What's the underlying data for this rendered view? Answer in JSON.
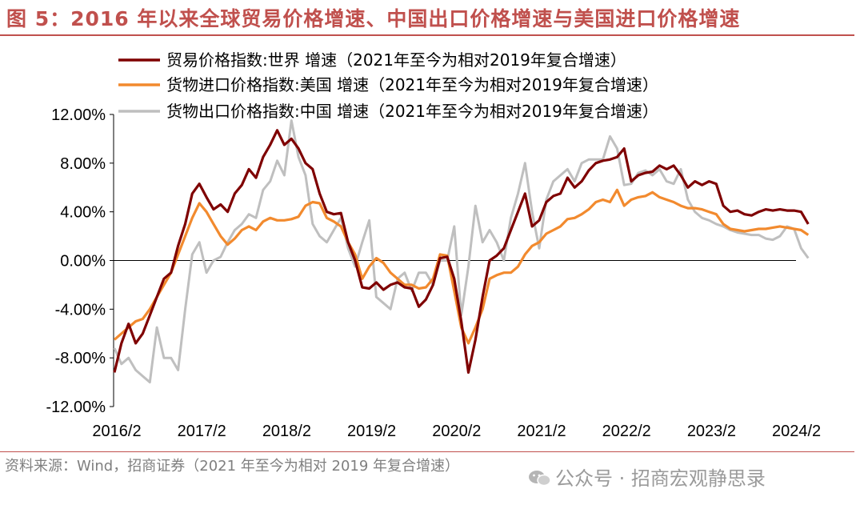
{
  "title": "图 5：2016 年以来全球贸易价格增速、中国出口价格增速与美国进口价格增速",
  "source": "资料来源：Wind，招商证券（2021 年至今为相对 2019 年复合增速）",
  "watermark": "公众号 · 招商宏观静思录",
  "colors": {
    "accent": "#c0504d",
    "world": "#7f0000",
    "us": "#f28a2e",
    "china": "#bfbfbf"
  },
  "chart_data": {
    "type": "line",
    "ylim": [
      -12,
      12
    ],
    "yticks": [
      "12.00%",
      "8.00%",
      "4.00%",
      "0.00%",
      "-4.00%",
      "-8.00%",
      "-12.00%"
    ],
    "ytick_values": [
      12,
      8,
      4,
      0,
      -4,
      -8,
      -12
    ],
    "xlabels": [
      "2016/2",
      "2017/2",
      "2018/2",
      "2019/2",
      "2020/2",
      "2021/2",
      "2022/2",
      "2023/2",
      "2024/2"
    ],
    "x_start": "2016/2",
    "x_end": "2024/5",
    "grid": false,
    "legend_position": "top",
    "series": [
      {
        "name": "贸易价格指数:世界 增速（2021年至今为相对2019年复合增速）",
        "color": "#7f0000",
        "values": [
          -9.2,
          -6.8,
          -5.2,
          -6.8,
          -6.0,
          -4.5,
          -3.0,
          -1.5,
          -1.0,
          1.2,
          3.0,
          5.5,
          6.3,
          5.2,
          4.2,
          4.6,
          4.0,
          5.5,
          6.2,
          7.5,
          6.8,
          8.5,
          9.5,
          10.7,
          9.5,
          10.0,
          9.2,
          8.0,
          7.5,
          5.5,
          4.0,
          3.8,
          3.9,
          1.5,
          0.0,
          -2.2,
          -2.3,
          -1.8,
          -2.4,
          -2.0,
          -1.8,
          -2.2,
          -2.3,
          -3.8,
          -3.2,
          -2.0,
          0.2,
          0.3,
          -1.5,
          -5.0,
          -9.2,
          -6.5,
          -3.0,
          0.0,
          0.4,
          1.0,
          2.5,
          4.0,
          5.5,
          2.8,
          3.3,
          4.8,
          5.3,
          5.5,
          6.8,
          6.0,
          6.5,
          7.4,
          8.0,
          8.2,
          8.3,
          8.5,
          9.2,
          6.5,
          7.0,
          7.2,
          7.3,
          7.8,
          7.5,
          7.8,
          7.0,
          6.0,
          6.5,
          6.2,
          6.5,
          6.3,
          4.5,
          4.0,
          4.1,
          3.8,
          3.7,
          4.0,
          4.2,
          4.1,
          4.2,
          4.1,
          4.1,
          4.0,
          3.0
        ]
      },
      {
        "name": "货物进口价格指数:美国 增速（2021年至今为相对2019年复合增速）",
        "color": "#f28a2e",
        "values": [
          -6.5,
          -6.0,
          -5.5,
          -5.0,
          -4.8,
          -4.0,
          -3.0,
          -2.0,
          -1.0,
          0.5,
          2.0,
          3.5,
          4.7,
          4.0,
          3.0,
          2.0,
          1.3,
          1.8,
          2.5,
          2.8,
          2.5,
          3.2,
          3.5,
          3.3,
          3.3,
          3.4,
          3.6,
          4.5,
          4.8,
          4.7,
          3.5,
          3.2,
          2.8,
          1.5,
          0.5,
          -1.5,
          -0.5,
          0.2,
          -0.2,
          -1.0,
          -1.5,
          -2.0,
          -2.0,
          -2.3,
          -2.2,
          -1.5,
          0.5,
          0.4,
          -2.5,
          -5.5,
          -6.8,
          -5.5,
          -4.0,
          -1.5,
          -1.2,
          -1.0,
          -1.0,
          -0.5,
          0.5,
          1.2,
          1.5,
          2.2,
          2.5,
          2.8,
          3.4,
          3.5,
          3.8,
          4.2,
          4.8,
          5.0,
          4.8,
          5.8,
          4.5,
          5.0,
          5.2,
          5.3,
          5.6,
          5.2,
          5.0,
          4.8,
          4.5,
          4.3,
          4.3,
          4.2,
          4.0,
          3.8,
          3.0,
          2.6,
          2.5,
          2.4,
          2.5,
          2.6,
          2.6,
          2.7,
          2.8,
          2.7,
          2.6,
          2.5,
          2.1
        ]
      },
      {
        "name": "货物出口价格指数:中国 增速（2021年至今为相对2019年复合增速）",
        "color": "#bfbfbf",
        "values": [
          -7.2,
          -8.5,
          -8.0,
          -9.0,
          -9.5,
          -10.0,
          -5.5,
          -8.0,
          -8.0,
          -9.0,
          -4.0,
          0.5,
          1.5,
          -1.0,
          0.0,
          0.3,
          1.5,
          2.5,
          3.0,
          3.8,
          3.5,
          5.8,
          6.5,
          8.2,
          7.0,
          11.5,
          8.5,
          7.0,
          3.0,
          2.0,
          1.5,
          2.5,
          3.5,
          1.0,
          -0.5,
          1.5,
          3.3,
          -3.0,
          -3.5,
          -4.0,
          -1.5,
          -1.0,
          -2.5,
          -1.0,
          -1.0,
          -2.0,
          0.0,
          0.0,
          2.8,
          -4.5,
          -0.5,
          4.5,
          1.5,
          2.5,
          1.5,
          0.0,
          3.5,
          5.5,
          8.0,
          4.0,
          1.0,
          5.0,
          6.5,
          7.0,
          7.5,
          6.5,
          8.0,
          8.3,
          8.3,
          8.3,
          10.2,
          9.2,
          6.2,
          6.3,
          7.2,
          7.4,
          7.0,
          7.5,
          6.5,
          6.3,
          7.5,
          5.0,
          4.0,
          3.5,
          3.3,
          3.0,
          2.8,
          2.5,
          2.3,
          2.2,
          2.1,
          2.1,
          1.8,
          1.7,
          2.0,
          2.8,
          2.6,
          1.0,
          0.2
        ]
      }
    ]
  }
}
